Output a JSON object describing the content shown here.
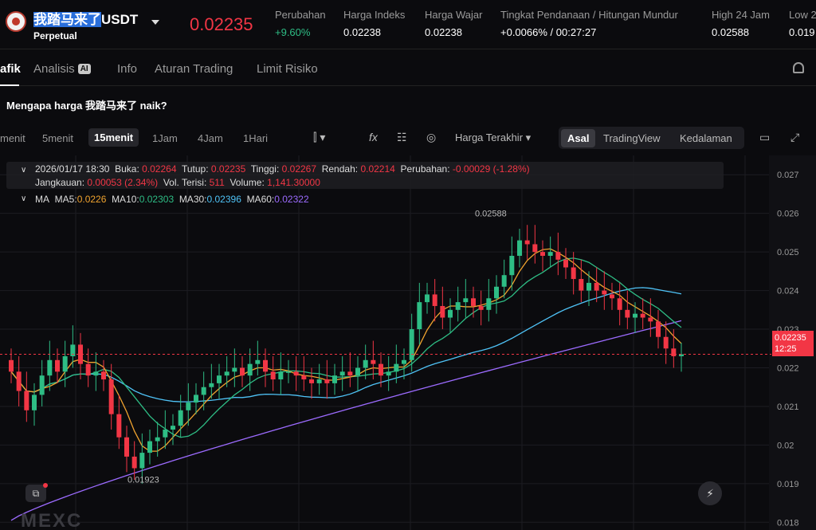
{
  "header": {
    "symbol_hl": "我踏马来了",
    "symbol_rest": "USDT",
    "contract_type": "Perpetual",
    "last_price": "0.02235",
    "stats": [
      {
        "label": "Perubahan",
        "value": "+9.60%"
      },
      {
        "label": "Harga Indeks",
        "value": "0.02238"
      },
      {
        "label": "Harga Wajar",
        "value": "0.02238"
      },
      {
        "label": "Tingkat Pendanaan  /  Hitungan Mundur",
        "value": "+0.0066%  /  00:27:27"
      },
      {
        "label": "High 24 Jam",
        "value": "0.02588"
      },
      {
        "label": "Low 2",
        "value": "0.019"
      }
    ]
  },
  "tabs": [
    {
      "label": "afik"
    },
    {
      "label": "Analisis"
    },
    {
      "label": "Info"
    },
    {
      "label": "Aturan Trading"
    },
    {
      "label": "Limit Risiko"
    }
  ],
  "ai_badge": "AI",
  "question": "Mengapa harga 我踏马来了 naik?",
  "toolbar": {
    "timeframes": [
      "menit",
      "5menit",
      "15menit",
      "1Jam",
      "4Jam",
      "1Hari"
    ],
    "active_timeframe": "15menit",
    "price_type": "Harga Terakhir",
    "views": [
      "Asal",
      "TradingView",
      "Kedalaman"
    ],
    "active_view": "Asal"
  },
  "ohlc": {
    "date": "2026/01/17 18:30",
    "open_label": "Buka:",
    "open": "0.02264",
    "close_label": "Tutup:",
    "close": "0.02235",
    "high_label": "Tinggi:",
    "high": "0.02267",
    "low_label": "Rendah:",
    "low": "0.02214",
    "change_label": "Perubahan:",
    "change": "-0.00029 (-1.28%)",
    "range_label": "Jangkauan:",
    "range": "0.00053 (2.34%)",
    "vol_filled_label": "Vol. Terisi:",
    "vol_filled": "511",
    "volume_label": "Volume:",
    "volume": "1,141.30000"
  },
  "ma": {
    "label": "MA",
    "items": [
      {
        "name": "MA5:",
        "value": "0.0226",
        "color": "#f0a32f"
      },
      {
        "name": "MA10:",
        "value": "0.02303",
        "color": "#2ebd85"
      },
      {
        "name": "MA30:",
        "value": "0.02396",
        "color": "#4fc3f7"
      },
      {
        "name": "MA60:",
        "value": "0.02322",
        "color": "#9c6bff"
      }
    ]
  },
  "chart_data": {
    "type": "candlestick",
    "y_ticks": [
      "0.027",
      "0.026",
      "0.025",
      "0.024",
      "0.023",
      "0.022",
      "0.021",
      "0.02",
      "0.019",
      "0.018"
    ],
    "ylim": [
      0.0178,
      0.0275
    ],
    "high_annotation": "0.02588",
    "low_annotation": "0.01923",
    "current_price": "0.02235",
    "countdown": "12:25",
    "closes": [
      0.0219,
      0.0214,
      0.0209,
      0.0213,
      0.0218,
      0.0222,
      0.0219,
      0.0223,
      0.0226,
      0.0221,
      0.0218,
      0.0219,
      0.0217,
      0.0208,
      0.0202,
      0.0197,
      0.0194,
      0.0198,
      0.0201,
      0.0202,
      0.0204,
      0.0205,
      0.0209,
      0.0211,
      0.0213,
      0.0215,
      0.0216,
      0.0218,
      0.0219,
      0.022,
      0.0218,
      0.0221,
      0.0222,
      0.0219,
      0.0217,
      0.0219,
      0.0219,
      0.0218,
      0.0217,
      0.0216,
      0.0217,
      0.0216,
      0.0218,
      0.0219,
      0.0218,
      0.022,
      0.0222,
      0.0221,
      0.0218,
      0.0219,
      0.0221,
      0.0222,
      0.023,
      0.0237,
      0.0239,
      0.0236,
      0.0233,
      0.0235,
      0.0237,
      0.0238,
      0.0236,
      0.0235,
      0.0238,
      0.0241,
      0.0244,
      0.0249,
      0.0253,
      0.0252,
      0.025,
      0.0249,
      0.025,
      0.0248,
      0.0246,
      0.0243,
      0.024,
      0.0242,
      0.024,
      0.0239,
      0.0238,
      0.0235,
      0.0233,
      0.0234,
      0.0233,
      0.0232,
      0.0228,
      0.0225,
      0.0223,
      0.02235
    ]
  },
  "watermark": "MEXC",
  "icons": {
    "flash": "⚡",
    "layers": "⧉",
    "indicator": "fx",
    "camera": "◎"
  }
}
